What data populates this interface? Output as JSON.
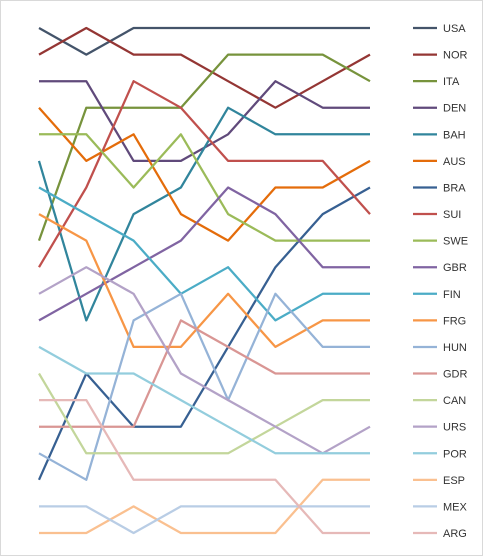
{
  "chart_data": {
    "type": "line",
    "x": [
      1,
      2,
      3,
      4,
      5,
      6,
      7,
      8
    ],
    "yaxis": {
      "reversed": true,
      "min": 1,
      "max": 20
    },
    "grid": false,
    "legend": "right",
    "series": [
      {
        "name": "USA",
        "color": "#44546A",
        "values": [
          1,
          2,
          1,
          1,
          1,
          1,
          1,
          1
        ]
      },
      {
        "name": "NOR",
        "color": "#943634",
        "values": [
          2,
          1,
          2,
          2,
          3,
          4,
          3,
          2
        ]
      },
      {
        "name": "ITA",
        "color": "#77933C",
        "values": [
          9,
          4,
          4,
          4,
          2,
          2,
          2,
          3
        ]
      },
      {
        "name": "DEN",
        "color": "#604A7B",
        "values": [
          3,
          3,
          6,
          6,
          5,
          3,
          4,
          4
        ]
      },
      {
        "name": "BAH",
        "color": "#31859C",
        "values": [
          6,
          12,
          8,
          7,
          4,
          5,
          5,
          5
        ]
      },
      {
        "name": "AUS",
        "color": "#E46C0A",
        "values": [
          4,
          6,
          5,
          8,
          9,
          7,
          7,
          6
        ]
      },
      {
        "name": "BRA",
        "color": "#376092",
        "values": [
          18,
          14,
          16,
          16,
          13,
          10,
          8,
          7
        ]
      },
      {
        "name": "SUI",
        "color": "#C0504D",
        "values": [
          10,
          7,
          3,
          4,
          6,
          6,
          6,
          8
        ]
      },
      {
        "name": "SWE",
        "color": "#9BBB59",
        "values": [
          5,
          5,
          7,
          5,
          8,
          9,
          9,
          9
        ]
      },
      {
        "name": "GBR",
        "color": "#8064A2",
        "values": [
          12,
          11,
          10,
          9,
          7,
          8,
          10,
          10
        ]
      },
      {
        "name": "FIN",
        "color": "#4BACC6",
        "values": [
          7,
          8,
          9,
          11,
          10,
          12,
          11,
          11
        ]
      },
      {
        "name": "FRG",
        "color": "#F79646",
        "values": [
          8,
          9,
          13,
          13,
          11,
          13,
          12,
          12
        ]
      },
      {
        "name": "HUN",
        "color": "#95B3D7",
        "values": [
          17,
          18,
          12,
          11,
          15,
          11,
          13,
          13
        ]
      },
      {
        "name": "GDR",
        "color": "#D99694",
        "values": [
          16,
          16,
          16,
          12,
          13,
          14,
          14,
          14
        ]
      },
      {
        "name": "CAN",
        "color": "#C3D69B",
        "values": [
          14,
          17,
          17,
          17,
          17,
          16,
          15,
          15
        ]
      },
      {
        "name": "URS",
        "color": "#B3A2C7",
        "values": [
          11,
          10,
          11,
          14,
          15,
          16,
          17,
          16
        ]
      },
      {
        "name": "POR",
        "color": "#93CDDD",
        "values": [
          13,
          14,
          14,
          15,
          16,
          17,
          17,
          17
        ]
      },
      {
        "name": "ESP",
        "color": "#FAC090",
        "values": [
          20,
          20,
          19,
          20,
          20,
          20,
          18,
          18
        ]
      },
      {
        "name": "MEX",
        "color": "#B9CDE5",
        "values": [
          19,
          19,
          20,
          19,
          19,
          19,
          19,
          19
        ]
      },
      {
        "name": "ARG",
        "color": "#E6B9B8",
        "values": [
          15,
          15,
          18,
          18,
          18,
          18,
          20,
          20
        ]
      }
    ]
  }
}
